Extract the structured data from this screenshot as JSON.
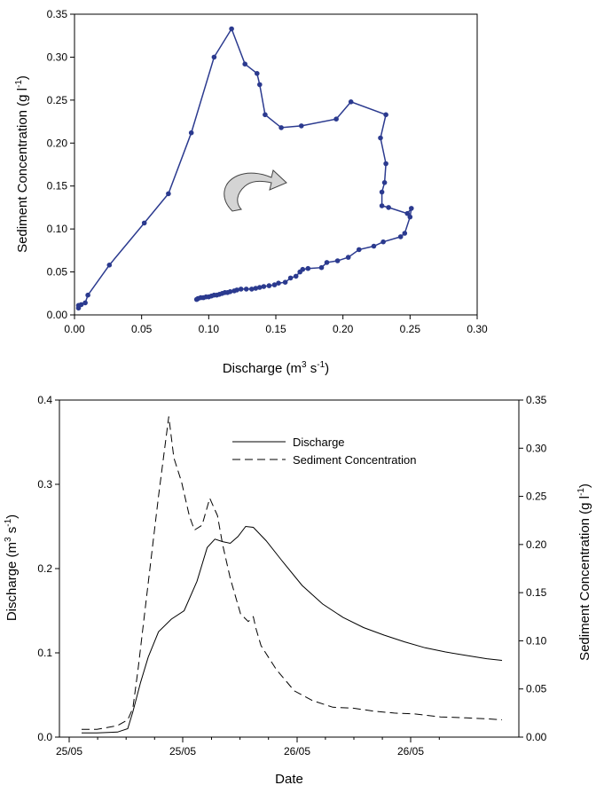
{
  "chart_data": [
    {
      "type": "scatter",
      "xlabel_main": "Discharge (m",
      "xlabel_sup1": "3",
      "xlabel_mid": " s",
      "xlabel_sup2": "-1",
      "xlabel_end": ")",
      "ylabel_main": "Sediment Concentration (g l",
      "ylabel_sup": "-1",
      "ylabel_end": ")",
      "xlim": [
        0,
        0.3
      ],
      "ylim": [
        0,
        0.35
      ],
      "xticks": [
        "0.00",
        "0.05",
        "0.10",
        "0.15",
        "0.20",
        "0.25",
        "0.30"
      ],
      "yticks": [
        "0.00",
        "0.05",
        "0.10",
        "0.15",
        "0.20",
        "0.25",
        "0.30",
        "0.35"
      ],
      "series_color": "#2b3a8f",
      "points": [
        [
          0.003,
          0.008
        ],
        [
          0.003,
          0.011
        ],
        [
          0.005,
          0.012
        ],
        [
          0.008,
          0.014
        ],
        [
          0.01,
          0.023
        ],
        [
          0.026,
          0.058
        ],
        [
          0.052,
          0.107
        ],
        [
          0.07,
          0.141
        ],
        [
          0.087,
          0.212
        ],
        [
          0.104,
          0.3
        ],
        [
          0.117,
          0.333
        ],
        [
          0.127,
          0.292
        ],
        [
          0.136,
          0.281
        ],
        [
          0.138,
          0.268
        ],
        [
          0.142,
          0.233
        ],
        [
          0.154,
          0.218
        ],
        [
          0.169,
          0.22
        ],
        [
          0.195,
          0.228
        ],
        [
          0.206,
          0.248
        ],
        [
          0.232,
          0.233
        ],
        [
          0.228,
          0.206
        ],
        [
          0.232,
          0.176
        ],
        [
          0.231,
          0.154
        ],
        [
          0.229,
          0.143
        ],
        [
          0.229,
          0.127
        ],
        [
          0.234,
          0.125
        ],
        [
          0.248,
          0.118
        ],
        [
          0.251,
          0.124
        ],
        [
          0.25,
          0.114
        ],
        [
          0.246,
          0.095
        ],
        [
          0.243,
          0.091
        ],
        [
          0.23,
          0.085
        ],
        [
          0.223,
          0.08
        ],
        [
          0.212,
          0.076
        ],
        [
          0.204,
          0.067
        ],
        [
          0.196,
          0.063
        ],
        [
          0.188,
          0.061
        ],
        [
          0.184,
          0.055
        ],
        [
          0.174,
          0.054
        ],
        [
          0.17,
          0.053
        ],
        [
          0.168,
          0.05
        ],
        [
          0.165,
          0.045
        ],
        [
          0.161,
          0.043
        ],
        [
          0.157,
          0.038
        ],
        [
          0.152,
          0.037
        ],
        [
          0.149,
          0.035
        ],
        [
          0.145,
          0.034
        ],
        [
          0.141,
          0.033
        ],
        [
          0.138,
          0.032
        ],
        [
          0.135,
          0.031
        ],
        [
          0.132,
          0.03
        ],
        [
          0.128,
          0.03
        ],
        [
          0.124,
          0.03
        ],
        [
          0.121,
          0.029
        ],
        [
          0.119,
          0.028
        ],
        [
          0.116,
          0.027
        ],
        [
          0.114,
          0.026
        ],
        [
          0.112,
          0.026
        ],
        [
          0.11,
          0.025
        ],
        [
          0.108,
          0.024
        ],
        [
          0.106,
          0.023
        ],
        [
          0.104,
          0.023
        ],
        [
          0.102,
          0.022
        ],
        [
          0.1,
          0.021
        ],
        [
          0.098,
          0.021
        ],
        [
          0.096,
          0.02
        ],
        [
          0.094,
          0.02
        ],
        [
          0.092,
          0.019
        ],
        [
          0.091,
          0.018
        ]
      ]
    },
    {
      "type": "line",
      "xlabel": "Date",
      "xticks": [
        "25/05",
        "25/05",
        "26/05",
        "26/05"
      ],
      "y_left_label_main": "Discharge (m",
      "y_left_label_sup1": "3",
      "y_left_label_mid": " s",
      "y_left_label_sup2": "-1",
      "y_left_label_end": ")",
      "y_right_label_main": "Sediment Concentration (g l",
      "y_right_label_sup": "-1",
      "y_right_label_end": ")",
      "ylim_left": [
        0,
        0.4
      ],
      "ylim_right": [
        0,
        0.35
      ],
      "yticks_left": [
        "0.0",
        "0.1",
        "0.2",
        "0.3",
        "0.4"
      ],
      "yticks_right": [
        "0.00",
        "0.05",
        "0.10",
        "0.15",
        "0.20",
        "0.25",
        "0.30",
        "0.35"
      ],
      "legend": [
        "Discharge",
        "Sediment Concentration"
      ],
      "legend_position": "top-right",
      "discharge": [
        [
          0.0,
          0.005
        ],
        [
          0.06,
          0.005
        ],
        [
          0.14,
          0.006
        ],
        [
          0.18,
          0.01
        ],
        [
          0.2,
          0.03
        ],
        [
          0.23,
          0.065
        ],
        [
          0.26,
          0.095
        ],
        [
          0.3,
          0.125
        ],
        [
          0.35,
          0.14
        ],
        [
          0.4,
          0.15
        ],
        [
          0.45,
          0.185
        ],
        [
          0.49,
          0.225
        ],
        [
          0.52,
          0.235
        ],
        [
          0.55,
          0.232
        ],
        [
          0.58,
          0.23
        ],
        [
          0.61,
          0.238
        ],
        [
          0.64,
          0.25
        ],
        [
          0.67,
          0.249
        ],
        [
          0.72,
          0.233
        ],
        [
          0.78,
          0.21
        ],
        [
          0.86,
          0.18
        ],
        [
          0.94,
          0.158
        ],
        [
          1.02,
          0.142
        ],
        [
          1.1,
          0.13
        ],
        [
          1.18,
          0.121
        ],
        [
          1.26,
          0.113
        ],
        [
          1.34,
          0.106
        ],
        [
          1.42,
          0.101
        ],
        [
          1.5,
          0.097
        ],
        [
          1.58,
          0.093
        ],
        [
          1.64,
          0.091
        ]
      ],
      "sediment": [
        [
          0.0,
          0.008
        ],
        [
          0.06,
          0.008
        ],
        [
          0.14,
          0.012
        ],
        [
          0.18,
          0.018
        ],
        [
          0.2,
          0.03
        ],
        [
          0.22,
          0.07
        ],
        [
          0.26,
          0.16
        ],
        [
          0.3,
          0.25
        ],
        [
          0.34,
          0.333
        ],
        [
          0.36,
          0.29
        ],
        [
          0.39,
          0.265
        ],
        [
          0.42,
          0.23
        ],
        [
          0.44,
          0.215
        ],
        [
          0.47,
          0.22
        ],
        [
          0.5,
          0.248
        ],
        [
          0.53,
          0.23
        ],
        [
          0.55,
          0.2
        ],
        [
          0.58,
          0.165
        ],
        [
          0.62,
          0.128
        ],
        [
          0.65,
          0.12
        ],
        [
          0.67,
          0.125
        ],
        [
          0.68,
          0.113
        ],
        [
          0.7,
          0.095
        ],
        [
          0.76,
          0.07
        ],
        [
          0.83,
          0.048
        ],
        [
          0.9,
          0.038
        ],
        [
          0.98,
          0.031
        ],
        [
          1.06,
          0.03
        ],
        [
          1.14,
          0.027
        ],
        [
          1.22,
          0.025
        ],
        [
          1.3,
          0.024
        ],
        [
          1.4,
          0.021
        ],
        [
          1.5,
          0.02
        ],
        [
          1.58,
          0.019
        ],
        [
          1.64,
          0.018
        ]
      ],
      "t_range": [
        0,
        1.64
      ]
    }
  ]
}
